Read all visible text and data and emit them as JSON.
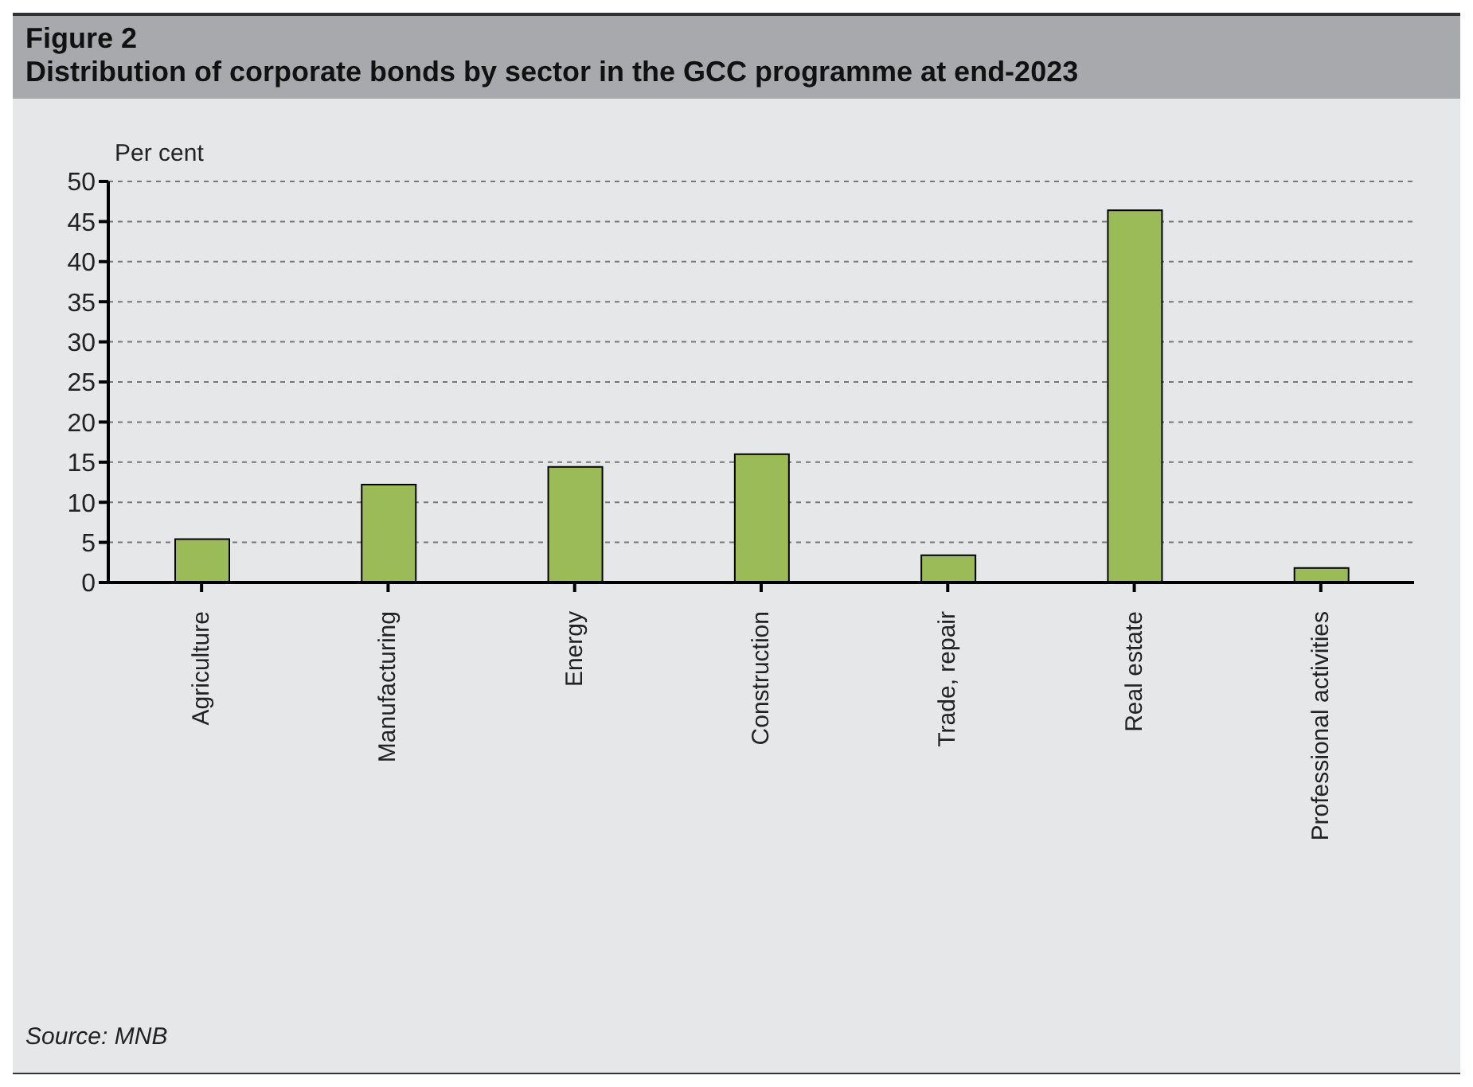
{
  "chart_data": {
    "type": "bar",
    "title": "Figure 2",
    "subtitle": "Distribution of corporate bonds by sector in the GCC programme at end-2023",
    "ylabel": "Per cent",
    "categories": [
      "Agriculture",
      "Manufacturing",
      "Energy",
      "Construction",
      "Trade, repair",
      "Real estate",
      "Professional activities"
    ],
    "values": [
      5.4,
      12.2,
      14.4,
      16.0,
      3.4,
      46.4,
      1.8
    ],
    "color": "#9bbb59",
    "ylim": [
      0,
      50
    ],
    "yticks": [
      0,
      5,
      10,
      15,
      20,
      25,
      30,
      35,
      40,
      45,
      50
    ],
    "grid": "y",
    "annotations": [
      "Source: MNB"
    ]
  }
}
